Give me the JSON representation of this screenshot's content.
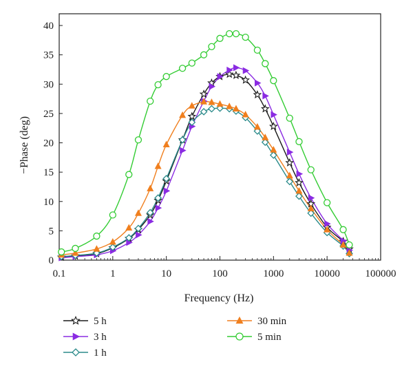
{
  "chart_data": {
    "type": "scatter",
    "xlabel": "Frequency (Hz)",
    "ylabel": "−Phase (deg)",
    "xscale": "log",
    "xlim": [
      0.1,
      100000
    ],
    "ylim": [
      0,
      42
    ],
    "xticks": [
      "0.1",
      "1",
      "10",
      "100",
      "1000",
      "10000",
      "100000"
    ],
    "yticks": [
      "0",
      "5",
      "10",
      "15",
      "20",
      "25",
      "30",
      "35",
      "40"
    ],
    "grid": false,
    "legend_position": "bottom",
    "series": [
      {
        "name": "5 h",
        "marker": "star",
        "color": "#1a1a1a",
        "x": [
          0.11,
          0.2,
          0.5,
          1,
          2,
          3,
          5,
          7,
          10,
          20,
          30,
          50,
          70,
          100,
          150,
          200,
          300,
          500,
          700,
          1000,
          2000,
          3000,
          5000,
          10000,
          20000,
          26000
        ],
        "y": [
          0.5,
          0.7,
          1.1,
          2.1,
          3.7,
          5.2,
          7.7,
          10.2,
          13.5,
          20.5,
          24.5,
          28.3,
          30.2,
          31.3,
          31.7,
          31.5,
          30.7,
          28.2,
          25.8,
          22.8,
          16.6,
          13.2,
          9.6,
          5.6,
          3.2,
          1.9
        ]
      },
      {
        "name": "3 h",
        "marker": "triangle-right",
        "color": "#8a2be2",
        "x": [
          0.11,
          0.2,
          0.5,
          1,
          2,
          3,
          5,
          7,
          10,
          20,
          30,
          50,
          70,
          100,
          150,
          200,
          300,
          500,
          700,
          1000,
          2000,
          3000,
          5000,
          10000,
          20000,
          26000
        ],
        "y": [
          0.4,
          0.6,
          0.9,
          1.6,
          3.0,
          4.3,
          6.6,
          8.9,
          11.8,
          18.7,
          22.8,
          27.1,
          29.6,
          31.3,
          32.4,
          32.8,
          32.3,
          30.2,
          28.0,
          24.8,
          18.4,
          14.7,
          10.6,
          6.2,
          3.3,
          1.7
        ]
      },
      {
        "name": "1 h",
        "marker": "diamond",
        "color": "#2a8a8a",
        "x": [
          0.11,
          0.2,
          0.5,
          1,
          2,
          3,
          5,
          7,
          10,
          20,
          30,
          50,
          70,
          100,
          150,
          200,
          300,
          500,
          700,
          1000,
          2000,
          3000,
          5000,
          10000,
          20000,
          26000
        ],
        "y": [
          0.6,
          0.8,
          1.2,
          2.2,
          3.8,
          5.4,
          8.1,
          10.6,
          13.9,
          20.5,
          23.5,
          25.3,
          25.8,
          25.9,
          25.8,
          25.4,
          24.3,
          22.0,
          20.1,
          17.9,
          13.4,
          10.9,
          8.0,
          4.7,
          2.4,
          1.1
        ]
      },
      {
        "name": "30 min",
        "marker": "triangle-up",
        "color": "#f07f1e",
        "x": [
          0.11,
          0.2,
          0.5,
          1,
          2,
          3,
          5,
          7,
          10,
          20,
          30,
          50,
          70,
          100,
          150,
          200,
          300,
          500,
          700,
          1000,
          2000,
          3000,
          5000,
          10000,
          20000,
          26000
        ],
        "y": [
          0.9,
          1.2,
          1.9,
          3.1,
          5.5,
          8.0,
          12.2,
          16.0,
          19.7,
          24.7,
          26.3,
          27.0,
          26.9,
          26.6,
          26.2,
          25.8,
          24.8,
          22.7,
          20.9,
          18.8,
          14.4,
          11.8,
          8.8,
          5.2,
          2.6,
          1.2
        ]
      },
      {
        "name": "5 min",
        "marker": "circle",
        "color": "#33cc33",
        "x": [
          0.11,
          0.2,
          0.5,
          1,
          2,
          3,
          5,
          7,
          10,
          20,
          30,
          50,
          70,
          100,
          150,
          200,
          300,
          500,
          700,
          1000,
          2000,
          3000,
          5000,
          10000,
          20000,
          26000
        ],
        "y": [
          1.4,
          2.0,
          4.1,
          7.7,
          14.6,
          20.5,
          27.1,
          29.9,
          31.3,
          32.7,
          33.6,
          35.0,
          36.4,
          37.8,
          38.6,
          38.6,
          38.0,
          35.8,
          33.5,
          30.6,
          24.2,
          20.2,
          15.4,
          9.8,
          5.2,
          2.6
        ]
      }
    ]
  }
}
